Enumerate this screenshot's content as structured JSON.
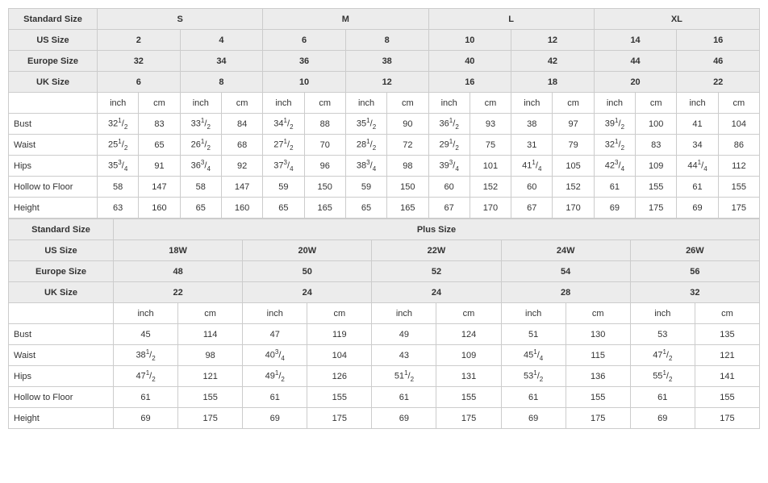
{
  "colors": {
    "header_bg": "#ececec",
    "border": "#cccccc",
    "text": "#333333"
  },
  "fonts": {
    "body_size": 11,
    "family": "Arial"
  },
  "h": {
    "standard_size": "Standard Size",
    "us_size": "US Size",
    "europe_size": "Europe Size",
    "uk_size": "UK Size",
    "plus_size": "Plus Size",
    "inch": "inch",
    "cm": "cm"
  },
  "top": {
    "std": [
      "S",
      "M",
      "L",
      "XL"
    ],
    "us": [
      "2",
      "4",
      "6",
      "8",
      "10",
      "12",
      "14",
      "16"
    ],
    "eu": [
      "32",
      "34",
      "36",
      "38",
      "40",
      "42",
      "44",
      "46"
    ],
    "uk": [
      "6",
      "8",
      "10",
      "12",
      "16",
      "18",
      "20",
      "22"
    ],
    "meas": [
      "Bust",
      "Waist",
      "Hips",
      "Hollow to Floor",
      "Height"
    ],
    "rows": [
      [
        "32½",
        "83",
        "33½",
        "84",
        "34½",
        "88",
        "35½",
        "90",
        "36½",
        "93",
        "38",
        "97",
        "39½",
        "100",
        "41",
        "104"
      ],
      [
        "25½",
        "65",
        "26½",
        "68",
        "27½",
        "70",
        "28½",
        "72",
        "29½",
        "75",
        "31",
        "79",
        "32½",
        "83",
        "34",
        "86"
      ],
      [
        "35¾",
        "91",
        "36¾",
        "92",
        "37¾",
        "96",
        "38¾",
        "98",
        "39¾",
        "101",
        "41¼",
        "105",
        "42¾",
        "109",
        "44¼",
        "112"
      ],
      [
        "58",
        "147",
        "58",
        "147",
        "59",
        "150",
        "59",
        "150",
        "60",
        "152",
        "60",
        "152",
        "61",
        "155",
        "61",
        "155"
      ],
      [
        "63",
        "160",
        "65",
        "160",
        "65",
        "165",
        "65",
        "165",
        "67",
        "170",
        "67",
        "170",
        "69",
        "175",
        "69",
        "175"
      ]
    ]
  },
  "bot": {
    "us": [
      "18W",
      "20W",
      "22W",
      "24W",
      "26W"
    ],
    "eu": [
      "48",
      "50",
      "52",
      "54",
      "56"
    ],
    "uk": [
      "22",
      "24",
      "24",
      "28",
      "32"
    ],
    "meas": [
      "Bust",
      "Waist",
      "Hips",
      "Hollow to Floor",
      "Height"
    ],
    "rows": [
      [
        "45",
        "114",
        "47",
        "119",
        "49",
        "124",
        "51",
        "130",
        "53",
        "135"
      ],
      [
        "38½",
        "98",
        "40¾",
        "104",
        "43",
        "109",
        "45¼",
        "115",
        "47½",
        "121"
      ],
      [
        "47½",
        "121",
        "49½",
        "126",
        "51½",
        "131",
        "53½",
        "136",
        "55½",
        "141"
      ],
      [
        "61",
        "155",
        "61",
        "155",
        "61",
        "155",
        "61",
        "155",
        "61",
        "155"
      ],
      [
        "69",
        "175",
        "69",
        "175",
        "69",
        "175",
        "69",
        "175",
        "69",
        "175"
      ]
    ]
  }
}
